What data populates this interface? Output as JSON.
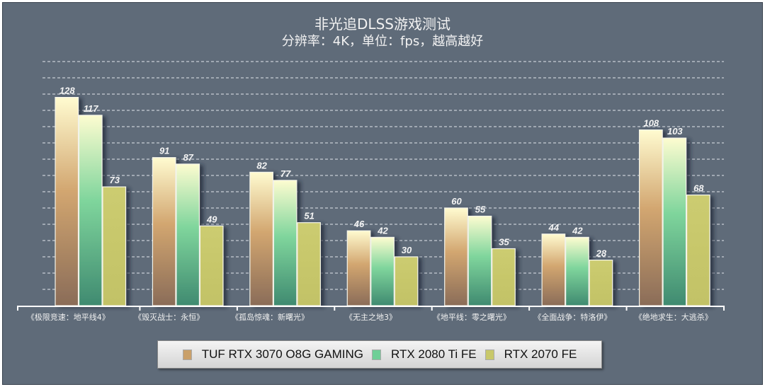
{
  "chart_data": {
    "type": "bar",
    "title": "非光追DLSS游戏测试",
    "subtitle": "分辨率：4K，单位：fps，越高越好",
    "categories": [
      "《极限竞速：地平线4》",
      "《毁灭战士：永恒》",
      "《孤岛惊魂：新曙光》",
      "《无主之地3》",
      "《地平线：零之曙光》",
      "《全面战争：特洛伊》",
      "《绝地求生：大逃杀》"
    ],
    "series": [
      {
        "name": "TUF RTX 3070 O8G GAMING",
        "values": [
          128,
          91,
          82,
          46,
          60,
          44,
          108
        ],
        "color": "#c9a06a"
      },
      {
        "name": "RTX 2080 Ti FE",
        "values": [
          117,
          87,
          77,
          42,
          55,
          42,
          103
        ],
        "color": "#6fcf97"
      },
      {
        "name": "RTX 2070 FE",
        "values": [
          73,
          49,
          51,
          30,
          35,
          28,
          68
        ],
        "color": "#c8c86a"
      }
    ],
    "ylim": [
      0,
      150
    ],
    "grid_step": 10,
    "grid": true,
    "legend_position": "bottom"
  }
}
